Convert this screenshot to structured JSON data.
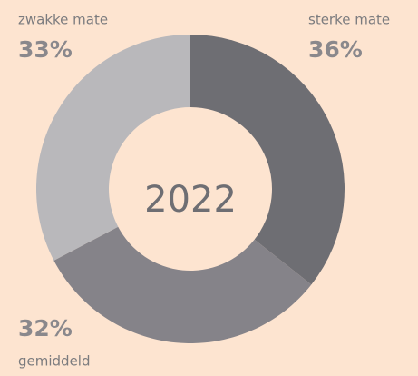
{
  "chart_data": {
    "type": "donut",
    "center_text": "2022",
    "categories": [
      "sterke mate",
      "gemiddeld",
      "zwakke mate"
    ],
    "values": [
      36,
      32,
      33
    ],
    "value_labels": [
      "36%",
      "32%",
      "33%"
    ],
    "colors": [
      "#6e6e73",
      "#858389",
      "#b9b8bb"
    ]
  }
}
